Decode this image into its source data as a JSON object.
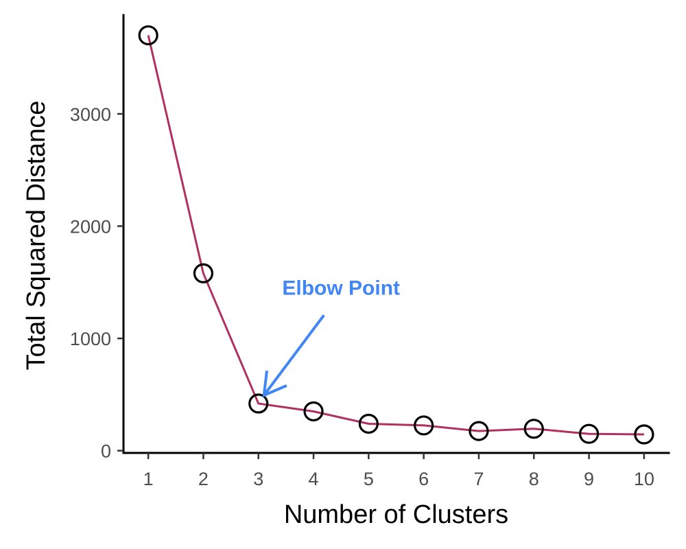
{
  "chart_data": {
    "type": "line",
    "title": "",
    "xlabel": "Number of Clusters",
    "ylabel": "Total Squared Distance",
    "x": [
      1,
      2,
      3,
      4,
      5,
      6,
      7,
      8,
      9,
      10
    ],
    "series": [
      {
        "values": [
          3700,
          1580,
          420,
          350,
          240,
          225,
          175,
          195,
          150,
          145
        ],
        "markers": "open-circle",
        "line_color": "#B03060",
        "marker_color": "#000000"
      }
    ],
    "xticks": [
      1,
      2,
      3,
      4,
      5,
      6,
      7,
      8,
      9,
      10
    ],
    "yticks": [
      0,
      1000,
      2000,
      3000
    ],
    "xlim": [
      0.55,
      10.45
    ],
    "ylim": [
      -20,
      3880
    ],
    "grid": false,
    "legend": "none",
    "annotation": {
      "text": "Elbow Point",
      "color": "#4285F4",
      "target": {
        "x": 3,
        "y": 420
      },
      "text_anchor": {
        "x": 4.5,
        "y": 1500
      }
    }
  }
}
